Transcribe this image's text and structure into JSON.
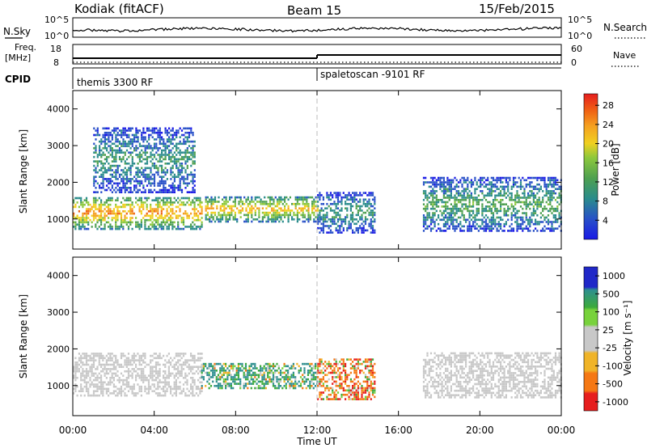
{
  "header": {
    "station": "Kodiak (fitACF)",
    "beam": "Beam 15",
    "date": "15/Feb/2015"
  },
  "strip_nsky": {
    "left_label": "N.Sky",
    "left_ticks": [
      "10^5",
      "10^0"
    ],
    "right_ticks": [
      "10^5",
      "10^0"
    ],
    "right_label": "N.Search"
  },
  "strip_freq": {
    "left_label_1": "Freq.",
    "left_label_2": "[MHz]",
    "left_ticks": [
      "18",
      "8"
    ],
    "right_ticks": [
      "60",
      "0"
    ],
    "right_label": "Nave"
  },
  "cpid": {
    "label": "CPID",
    "segments": [
      {
        "text": "themis 3300 RF",
        "start_hour": 0
      },
      {
        "text": "spaletoscan -9101 RF",
        "start_hour": 12
      }
    ]
  },
  "time_axis": {
    "label": "Time UT",
    "ticks": [
      "00:00",
      "04:00",
      "08:00",
      "12:00",
      "16:00",
      "20:00",
      "00:00"
    ],
    "range_hours": [
      0,
      24
    ]
  },
  "chart_data": [
    {
      "type": "heatmap",
      "name": "power-panel",
      "ylabel": "Slant Range [km]",
      "ylim": [
        180,
        4500
      ],
      "y_ticks": [
        "1000",
        "2000",
        "3000",
        "4000"
      ],
      "colorbar": {
        "label": "Power [dB]",
        "ticks": [
          "4",
          "8",
          "12",
          "16",
          "20",
          "24",
          "28"
        ],
        "colors": [
          "#1a1ae6",
          "#2850c8",
          "#2a8c8c",
          "#4ea050",
          "#8cc83c",
          "#f0d020",
          "#f5a020",
          "#f06414",
          "#e61e1e"
        ]
      },
      "regions": [
        {
          "t0": 0.0,
          "t1": 6.3,
          "r0": 700,
          "r1": 1600,
          "level": 22
        },
        {
          "t0": 6.5,
          "t1": 12.0,
          "r0": 900,
          "r1": 1600,
          "level": 20
        },
        {
          "t0": 12.0,
          "t1": 14.8,
          "r0": 600,
          "r1": 1700,
          "level": 10
        },
        {
          "t0": 17.2,
          "t1": 24.0,
          "r0": 650,
          "r1": 2100,
          "level": 12
        },
        {
          "t0": 1.0,
          "t1": 6.0,
          "r0": 1700,
          "r1": 3500,
          "level": 10
        }
      ]
    },
    {
      "type": "heatmap",
      "name": "velocity-panel",
      "ylabel": "Slant Range [km]",
      "ylim": [
        180,
        4500
      ],
      "y_ticks": [
        "1000",
        "2000",
        "3000",
        "4000"
      ],
      "colorbar": {
        "label": "Velocity [m s⁻¹]",
        "ticks": [
          "1000",
          "500",
          "100",
          "25",
          "-25",
          "-100",
          "-500",
          "-1000"
        ],
        "colors": [
          "#2028c8",
          "#2f8f8f",
          "#3caa3c",
          "#78d23c",
          "#c8c8c8",
          "#f0b428",
          "#f57814",
          "#e61e1e"
        ]
      },
      "regions": [
        {
          "t0": 0.0,
          "t1": 6.3,
          "r0": 700,
          "r1": 1900,
          "level": 0
        },
        {
          "t0": 6.3,
          "t1": 12.0,
          "r0": 900,
          "r1": 1600,
          "level": 300
        },
        {
          "t0": 12.0,
          "t1": 14.8,
          "r0": 600,
          "r1": 1700,
          "level": -300
        },
        {
          "t0": 17.2,
          "t1": 24.0,
          "r0": 650,
          "r1": 1900,
          "level": 0
        }
      ]
    }
  ]
}
